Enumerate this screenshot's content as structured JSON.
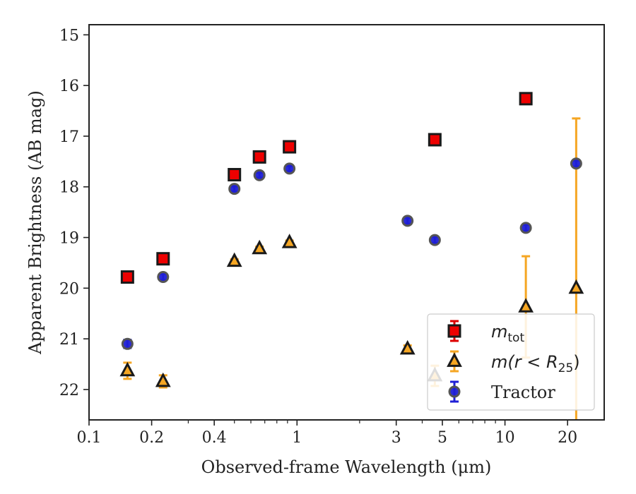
{
  "chart_data": {
    "type": "scatter",
    "xlabel": "Observed-frame Wavelength (μm)",
    "ylabel": "Apparent Brightness (AB mag)",
    "xscale": "log",
    "xlim": [
      0.1,
      30
    ],
    "ylim": [
      22.6,
      14.8
    ],
    "y_inverted": true,
    "x_ticks": [
      {
        "value": 0.1,
        "label": "0.1"
      },
      {
        "value": 0.2,
        "label": "0.2"
      },
      {
        "value": 0.4,
        "label": "0.4"
      },
      {
        "value": 1,
        "label": "1"
      },
      {
        "value": 3,
        "label": "3"
      },
      {
        "value": 5,
        "label": "5"
      },
      {
        "value": 10,
        "label": "10"
      },
      {
        "value": 20,
        "label": "20"
      }
    ],
    "y_ticks": [
      {
        "value": 15,
        "label": "15"
      },
      {
        "value": 16,
        "label": "16"
      },
      {
        "value": 17,
        "label": "17"
      },
      {
        "value": 18,
        "label": "18"
      },
      {
        "value": 19,
        "label": "19"
      },
      {
        "value": 20,
        "label": "20"
      },
      {
        "value": 21,
        "label": "21"
      },
      {
        "value": 22,
        "label": "22"
      }
    ],
    "grid": false,
    "legend_position": "lower-right",
    "series": [
      {
        "name": "m_tot",
        "legend_label": "m",
        "legend_sub": "tot",
        "marker": "square",
        "color": "#ee0000",
        "errcolor": "#dd0000",
        "points": [
          {
            "x": 0.153,
            "y": 19.78,
            "err": 0.05
          },
          {
            "x": 0.227,
            "y": 19.42,
            "err": 0.05
          },
          {
            "x": 0.5,
            "y": 17.76,
            "err": 0.05
          },
          {
            "x": 0.66,
            "y": 17.41,
            "err": 0.04
          },
          {
            "x": 0.92,
            "y": 17.21,
            "err": 0.04
          },
          {
            "x": 4.6,
            "y": 17.07,
            "err": 0.04
          },
          {
            "x": 12.6,
            "y": 16.26,
            "err": 0.05
          }
        ]
      },
      {
        "name": "m(r < R25)",
        "legend_label": "m(r < R",
        "legend_sub": "25",
        "legend_tail": ")",
        "marker": "triangle",
        "color": "#f5a623",
        "errcolor": "#f5a623",
        "points": [
          {
            "x": 0.153,
            "y": 21.63,
            "err": 0.16
          },
          {
            "x": 0.227,
            "y": 21.84,
            "err": 0.12
          },
          {
            "x": 0.5,
            "y": 19.47,
            "err": 0.04
          },
          {
            "x": 0.66,
            "y": 19.22,
            "err": 0.04
          },
          {
            "x": 0.92,
            "y": 19.1,
            "err": 0.04
          },
          {
            "x": 3.4,
            "y": 21.2,
            "err": 0.07
          },
          {
            "x": 4.6,
            "y": 21.73,
            "err": 0.2
          },
          {
            "x": 12.6,
            "y": 20.37,
            "err": 1.0
          },
          {
            "x": 22.0,
            "y": 20.0,
            "err": 3.35
          }
        ]
      },
      {
        "name": "Tractor",
        "legend_label": "Tractor",
        "marker": "circle",
        "color": "#1f1fd6",
        "errcolor": "#1f1fd6",
        "points": [
          {
            "x": 0.153,
            "y": 21.1,
            "err": 0.08
          },
          {
            "x": 0.227,
            "y": 19.78,
            "err": 0.06
          },
          {
            "x": 0.5,
            "y": 18.04,
            "err": 0.05
          },
          {
            "x": 0.66,
            "y": 17.77,
            "err": 0.05
          },
          {
            "x": 0.92,
            "y": 17.64,
            "err": 0.05
          },
          {
            "x": 3.4,
            "y": 18.67,
            "err": 0.06
          },
          {
            "x": 4.6,
            "y": 19.05,
            "err": 0.06
          },
          {
            "x": 12.6,
            "y": 18.81,
            "err": 0.06
          },
          {
            "x": 22.0,
            "y": 17.54,
            "err": 0.06
          }
        ]
      }
    ]
  }
}
